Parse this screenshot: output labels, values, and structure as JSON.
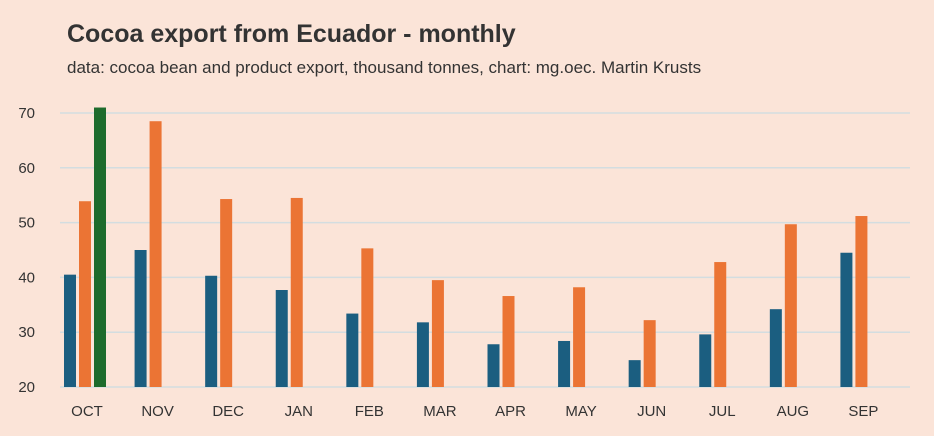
{
  "chart_data": {
    "type": "bar",
    "title": "Cocoa export from Ecuador - monthly",
    "subtitle": "data: cocoa bean and product export, thousand tonnes, chart: mg.oec. Martin Krusts",
    "categories": [
      "OCT",
      "NOV",
      "DEC",
      "JAN",
      "FEB",
      "MAR",
      "APR",
      "MAY",
      "JUN",
      "JUL",
      "AUG",
      "SEP"
    ],
    "series": [
      {
        "color": "#1b5e80",
        "values": [
          40.5,
          45,
          40.3,
          37.7,
          33.4,
          31.8,
          27.8,
          28.4,
          24.9,
          29.6,
          34.2,
          44.5
        ]
      },
      {
        "color": "#eb7434",
        "values": [
          53.9,
          68.5,
          54.3,
          54.5,
          45.3,
          39.5,
          36.6,
          38.2,
          32.2,
          42.8,
          49.7,
          51.2
        ]
      },
      {
        "color": "#1d6b2c",
        "values": [
          71,
          null,
          null,
          null,
          null,
          null,
          null,
          null,
          null,
          null,
          null,
          null
        ]
      }
    ],
    "yticks": [
      20,
      30,
      40,
      50,
      60,
      70
    ],
    "ylim": [
      20,
      72
    ],
    "grid": true,
    "gridColor": "#d3dde0"
  }
}
